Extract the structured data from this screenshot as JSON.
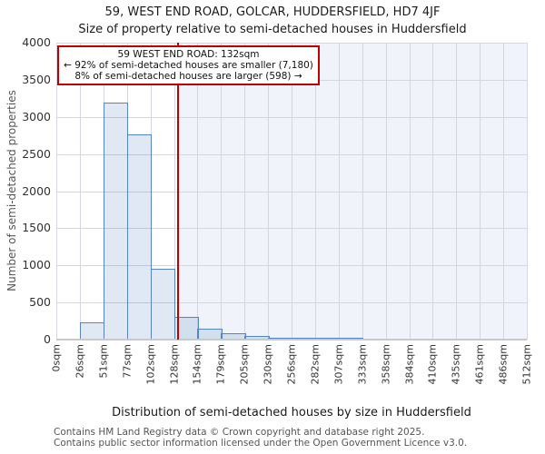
{
  "page": {
    "title": "59, WEST END ROAD, GOLCAR, HUDDERSFIELD, HD7 4JF",
    "subtitle": "Size of property relative to semi-detached houses in Huddersfield"
  },
  "chart_data": {
    "type": "bar",
    "title": "59, WEST END ROAD, GOLCAR, HUDDERSFIELD, HD7 4JF",
    "subtitle": "Size of property relative to semi-detached houses in Huddersfield",
    "xlabel": "Distribution of semi-detached houses by size in Huddersfield",
    "ylabel": "Number of semi-detached properties",
    "ylim": [
      0,
      4000
    ],
    "ytick_step": 500,
    "y_tick_labels": [
      "0",
      "500",
      "1000",
      "1500",
      "2000",
      "2500",
      "3000",
      "3500",
      "4000"
    ],
    "xlim_sqm": [
      0,
      512
    ],
    "x_tick_labels": [
      "0sqm",
      "26sqm",
      "51sqm",
      "77sqm",
      "102sqm",
      "128sqm",
      "154sqm",
      "179sqm",
      "205sqm",
      "230sqm",
      "256sqm",
      "282sqm",
      "307sqm",
      "333sqm",
      "358sqm",
      "384sqm",
      "410sqm",
      "435sqm",
      "461sqm",
      "486sqm",
      "512sqm"
    ],
    "grid": true,
    "bins": [
      {
        "range": "0-26sqm",
        "count": 0
      },
      {
        "range": "26-51sqm",
        "count": 230
      },
      {
        "range": "51-77sqm",
        "count": 3190
      },
      {
        "range": "77-102sqm",
        "count": 2760
      },
      {
        "range": "102-128sqm",
        "count": 950
      },
      {
        "range": "128-154sqm",
        "count": 300
      },
      {
        "range": "154-179sqm",
        "count": 145
      },
      {
        "range": "179-205sqm",
        "count": 80
      },
      {
        "range": "205-230sqm",
        "count": 45
      },
      {
        "range": "230-256sqm",
        "count": 28
      },
      {
        "range": "256-282sqm",
        "count": 20
      },
      {
        "range": "282-307sqm",
        "count": 15
      },
      {
        "range": "307-333sqm",
        "count": 10
      },
      {
        "range": "333-358sqm",
        "count": 0
      },
      {
        "range": "358-384sqm",
        "count": 0
      },
      {
        "range": "384-410sqm",
        "count": 0
      },
      {
        "range": "410-435sqm",
        "count": 0
      },
      {
        "range": "435-461sqm",
        "count": 0
      },
      {
        "range": "461-486sqm",
        "count": 0
      },
      {
        "range": "486-512sqm",
        "count": 0
      }
    ],
    "marker": {
      "x_sqm": 132,
      "label": "59 WEST END ROAD: 132sqm"
    },
    "annotation": {
      "line1": "59 WEST END ROAD: 132sqm",
      "line2": "← 92% of semi-detached houses are smaller (7,180)",
      "line3": "8% of semi-detached houses are larger (598) →"
    },
    "legend": null
  },
  "colors": {
    "bar_fill": "rgba(79,129,189,0.18)",
    "bar_border": "#5585c5",
    "marker_red": "#bf0000",
    "grid": "#d6d6de",
    "axis_line": "#c9c9c9",
    "shade_right": "rgba(110,145,205,0.10)"
  },
  "footer": {
    "line1": "Contains HM Land Registry data © Crown copyright and database right 2025.",
    "line2": "Contains public sector information licensed under the Open Government Licence v3.0."
  }
}
